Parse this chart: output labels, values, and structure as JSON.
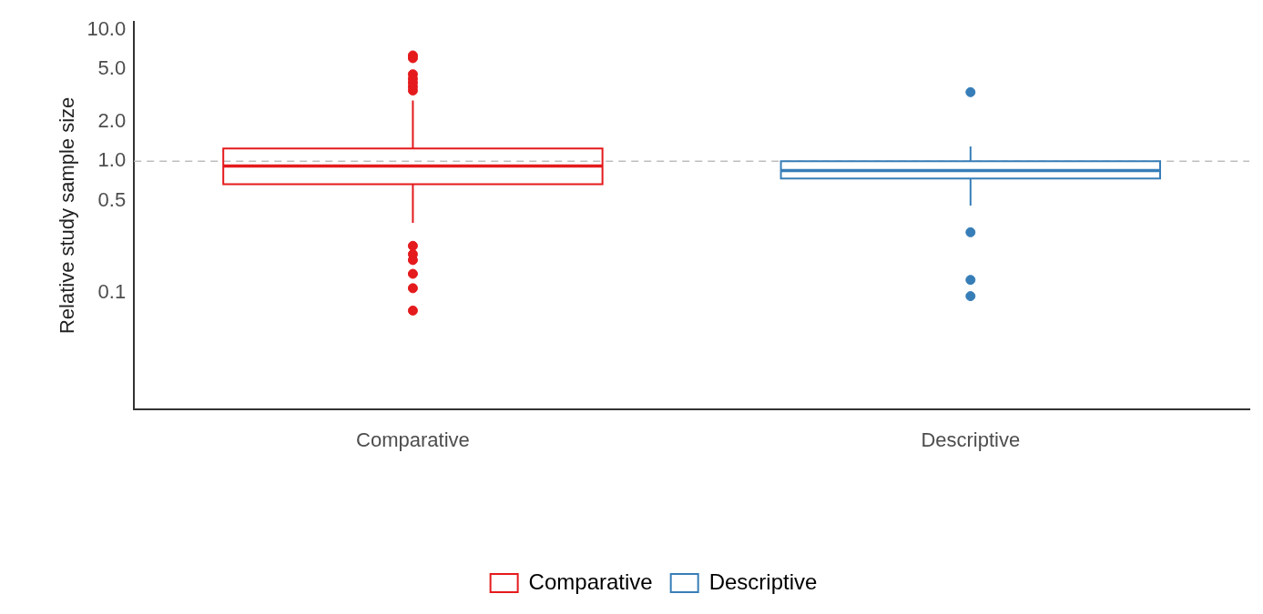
{
  "chart_data": {
    "type": "box",
    "ylabel": "Relative study sample size",
    "categories": [
      "Comparative",
      "Descriptive"
    ],
    "series": [
      {
        "name": "Comparative",
        "color": "#e41a1c",
        "boxes": [
          {
            "low": 0.34,
            "q1": 0.67,
            "median": 0.92,
            "q3": 1.25,
            "high": 2.9,
            "outliers": [
              6.4,
              6.1,
              4.6,
              4.25,
              3.97,
              3.7,
              3.46,
              0.227,
              0.196,
              0.177,
              0.139,
              0.108,
              0.073
            ]
          },
          null
        ]
      },
      {
        "name": "Descriptive",
        "color": "#377eb8",
        "boxes": [
          null,
          {
            "low": 0.46,
            "q1": 0.74,
            "median": 0.85,
            "q3": 1.0,
            "high": 1.3,
            "outliers": [
              3.36,
              0.288,
              0.125,
              0.094
            ]
          }
        ]
      }
    ],
    "log": "y",
    "ylim": [
      0.013,
      11.5
    ],
    "yticks": [
      0.1,
      0.5,
      {
        "value": 1,
        "label": "1.0"
      },
      {
        "value": 2,
        "label": "2.0"
      },
      {
        "value": 5,
        "label": "5.0"
      },
      {
        "value": 10,
        "label": "10.0"
      }
    ],
    "ref_lines": [
      {
        "axis": "y",
        "value": 1,
        "color": "#bdbdbd",
        "line_style": "dashed"
      }
    ],
    "grid": false,
    "legend": "bottom",
    "marker": "circle"
  }
}
